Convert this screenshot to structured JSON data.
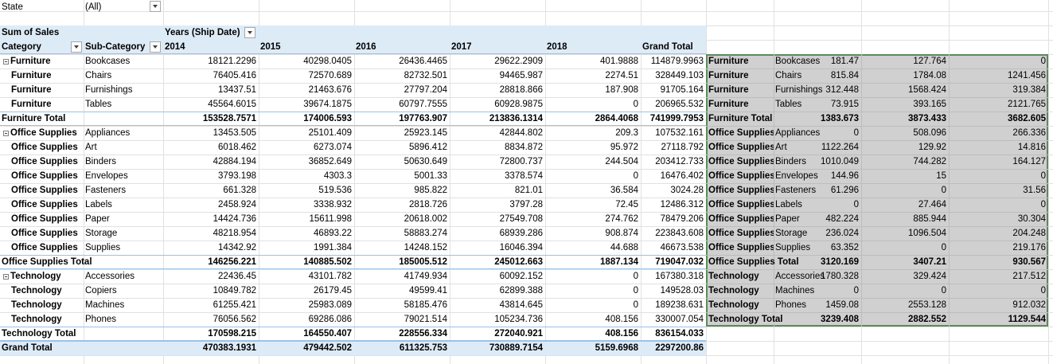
{
  "filter": {
    "field": "State",
    "value": "(All)"
  },
  "pivot": {
    "value_label": "Sum of Sales",
    "columns_label": "Years (Ship Date)",
    "category_header": "Category",
    "subcategory_header": "Sub-Category",
    "year_headers": [
      "2014",
      "2015",
      "2016",
      "2017",
      "2018",
      "Grand Total"
    ],
    "rows": [
      {
        "cat": "Furniture",
        "sub": "Bookcases",
        "vals": [
          "18121.2296",
          "40298.0405",
          "26436.4465",
          "29622.2909",
          "401.9888",
          "114879.9963"
        ],
        "first": true
      },
      {
        "cat": "Furniture",
        "sub": "Chairs",
        "vals": [
          "76405.416",
          "72570.689",
          "82732.501",
          "94465.987",
          "2274.51",
          "328449.103"
        ]
      },
      {
        "cat": "Furniture",
        "sub": "Furnishings",
        "vals": [
          "13437.51",
          "21463.676",
          "27797.204",
          "28818.866",
          "187.908",
          "91705.164"
        ]
      },
      {
        "cat": "Furniture",
        "sub": "Tables",
        "vals": [
          "45564.6015",
          "39674.1875",
          "60797.7555",
          "60928.9875",
          "0",
          "206965.532"
        ]
      },
      {
        "total": "Furniture Total",
        "vals": [
          "153528.7571",
          "174006.593",
          "197763.907",
          "213836.1314",
          "2864.4068",
          "741999.7953"
        ]
      },
      {
        "cat": "Office Supplies",
        "sub": "Appliances",
        "vals": [
          "13453.505",
          "25101.409",
          "25923.145",
          "42844.802",
          "209.3",
          "107532.161"
        ],
        "first": true
      },
      {
        "cat": "Office Supplies",
        "sub": "Art",
        "vals": [
          "6018.462",
          "6273.074",
          "5896.412",
          "8834.872",
          "95.972",
          "27118.792"
        ]
      },
      {
        "cat": "Office Supplies",
        "sub": "Binders",
        "vals": [
          "42884.194",
          "36852.649",
          "50630.649",
          "72800.737",
          "244.504",
          "203412.733"
        ]
      },
      {
        "cat": "Office Supplies",
        "sub": "Envelopes",
        "vals": [
          "3793.198",
          "4303.3",
          "5001.33",
          "3378.574",
          "0",
          "16476.402"
        ]
      },
      {
        "cat": "Office Supplies",
        "sub": "Fasteners",
        "vals": [
          "661.328",
          "519.536",
          "985.822",
          "821.01",
          "36.584",
          "3024.28"
        ]
      },
      {
        "cat": "Office Supplies",
        "sub": "Labels",
        "vals": [
          "2458.924",
          "3338.932",
          "2818.726",
          "3797.28",
          "72.45",
          "12486.312"
        ]
      },
      {
        "cat": "Office Supplies",
        "sub": "Paper",
        "vals": [
          "14424.736",
          "15611.998",
          "20618.002",
          "27549.708",
          "274.762",
          "78479.206"
        ]
      },
      {
        "cat": "Office Supplies",
        "sub": "Storage",
        "vals": [
          "48218.954",
          "46893.22",
          "58883.274",
          "68939.286",
          "908.874",
          "223843.608"
        ]
      },
      {
        "cat": "Office Supplies",
        "sub": "Supplies",
        "vals": [
          "14342.92",
          "1991.384",
          "14248.152",
          "16046.394",
          "44.688",
          "46673.538"
        ]
      },
      {
        "total": "Office Supplies Total",
        "vals": [
          "146256.221",
          "140885.502",
          "185005.512",
          "245012.663",
          "1887.134",
          "719047.032"
        ]
      },
      {
        "cat": "Technology",
        "sub": "Accessories",
        "vals": [
          "22436.45",
          "43101.782",
          "41749.934",
          "60092.152",
          "0",
          "167380.318"
        ],
        "first": true
      },
      {
        "cat": "Technology",
        "sub": "Copiers",
        "vals": [
          "10849.782",
          "26179.45",
          "49599.41",
          "62899.388",
          "0",
          "149528.03"
        ]
      },
      {
        "cat": "Technology",
        "sub": "Machines",
        "vals": [
          "61255.421",
          "25983.089",
          "58185.476",
          "43814.645",
          "0",
          "189238.631"
        ]
      },
      {
        "cat": "Technology",
        "sub": "Phones",
        "vals": [
          "76056.562",
          "69286.086",
          "79021.514",
          "105234.736",
          "408.156",
          "330007.054"
        ]
      },
      {
        "total": "Technology Total",
        "vals": [
          "170598.215",
          "164550.407",
          "228556.334",
          "272040.921",
          "408.156",
          "836154.033"
        ]
      },
      {
        "grand": "Grand Total",
        "vals": [
          "470383.1931",
          "479442.502",
          "611325.753",
          "730889.7154",
          "5159.6968",
          "2297200.86"
        ]
      }
    ]
  },
  "side_range": {
    "rows": [
      {
        "cat": "Furniture",
        "sub": "Bookcases",
        "vals": [
          "181.47",
          "127.764",
          "0"
        ]
      },
      {
        "cat": "Furniture",
        "sub": "Chairs",
        "vals": [
          "815.84",
          "1784.08",
          "1241.456"
        ]
      },
      {
        "cat": "Furniture",
        "sub": "Furnishings",
        "vals": [
          "312.448",
          "1568.424",
          "319.384"
        ]
      },
      {
        "cat": "Furniture",
        "sub": "Tables",
        "vals": [
          "73.915",
          "393.165",
          "2121.765"
        ]
      },
      {
        "total": "Furniture Total",
        "vals": [
          "1383.673",
          "3873.433",
          "3682.605"
        ]
      },
      {
        "cat": "Office Supplies",
        "sub": "Appliances",
        "vals": [
          "0",
          "508.096",
          "266.336"
        ]
      },
      {
        "cat": "Office Supplies",
        "sub": "Art",
        "vals": [
          "1122.264",
          "129.92",
          "14.816"
        ]
      },
      {
        "cat": "Office Supplies",
        "sub": "Binders",
        "vals": [
          "1010.049",
          "744.282",
          "164.127"
        ]
      },
      {
        "cat": "Office Supplies",
        "sub": "Envelopes",
        "vals": [
          "144.96",
          "15",
          "0"
        ]
      },
      {
        "cat": "Office Supplies",
        "sub": "Fasteners",
        "vals": [
          "61.296",
          "0",
          "31.56"
        ]
      },
      {
        "cat": "Office Supplies",
        "sub": "Labels",
        "vals": [
          "0",
          "27.464",
          "0"
        ]
      },
      {
        "cat": "Office Supplies",
        "sub": "Paper",
        "vals": [
          "482.224",
          "885.944",
          "30.304"
        ]
      },
      {
        "cat": "Office Supplies",
        "sub": "Storage",
        "vals": [
          "236.024",
          "1096.504",
          "204.248"
        ]
      },
      {
        "cat": "Office Supplies",
        "sub": "Supplies",
        "vals": [
          "63.352",
          "0",
          "219.176"
        ]
      },
      {
        "total": "Office Supplies Total",
        "vals": [
          "3120.169",
          "3407.21",
          "930.567"
        ]
      },
      {
        "cat": "Technology",
        "sub": "Accessories",
        "vals": [
          "1780.328",
          "329.424",
          "217.512"
        ]
      },
      {
        "cat": "Technology",
        "sub": "Machines",
        "vals": [
          "0",
          "0",
          "0"
        ]
      },
      {
        "cat": "Technology",
        "sub": "Phones",
        "vals": [
          "1459.08",
          "2553.128",
          "912.032"
        ]
      },
      {
        "total": "Technology Total",
        "vals": [
          "3239.408",
          "2882.552",
          "1129.544"
        ]
      }
    ]
  },
  "colors": {
    "header_fill": "#ddebf7",
    "selection_border": "#5c8a5c",
    "range_fill": "#d0d0d0"
  }
}
